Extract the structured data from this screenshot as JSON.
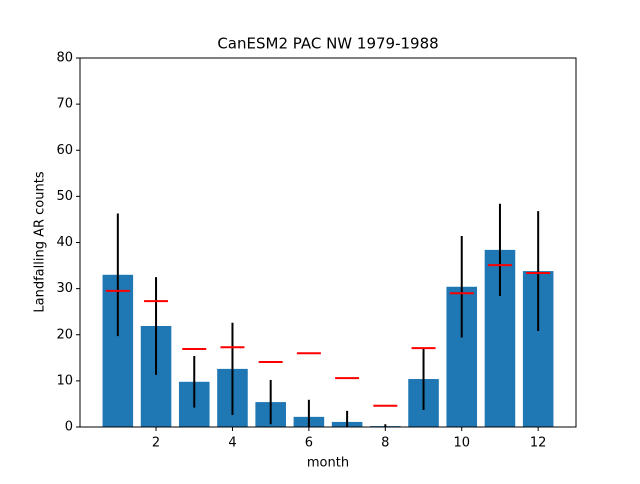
{
  "chart_data": {
    "type": "bar",
    "title": "CanESM2 PAC NW 1979-1988",
    "x_label": "month",
    "y_label": "Landfalling AR counts",
    "x": [
      1,
      2,
      3,
      4,
      5,
      6,
      7,
      8,
      9,
      10,
      11,
      12
    ],
    "series": [
      {
        "color": "#1f77b4",
        "values": [
          33.0,
          21.9,
          9.8,
          12.6,
          5.4,
          2.2,
          1.1,
          0.2,
          10.4,
          30.4,
          38.4,
          33.8
        ],
        "errors": [
          13.3,
          10.6,
          5.6,
          10.0,
          4.8,
          3.7,
          2.4,
          0.4,
          6.7,
          11.0,
          10.0,
          13.0
        ],
        "error_color": "#000000"
      }
    ],
    "markers": {
      "color": "#ff0000",
      "values": [
        29.5,
        27.3,
        16.9,
        17.3,
        14.1,
        16.0,
        10.6,
        4.6,
        17.1,
        29.0,
        35.1,
        33.4
      ]
    },
    "bar_width": 0.8,
    "xlim": [
      0.01,
      12.99
    ],
    "xticks": [
      2,
      4,
      6,
      8,
      10,
      12
    ],
    "ylim": [
      0,
      80
    ],
    "yticks": [
      0,
      10,
      20,
      30,
      40,
      50,
      60,
      70,
      80
    ]
  }
}
